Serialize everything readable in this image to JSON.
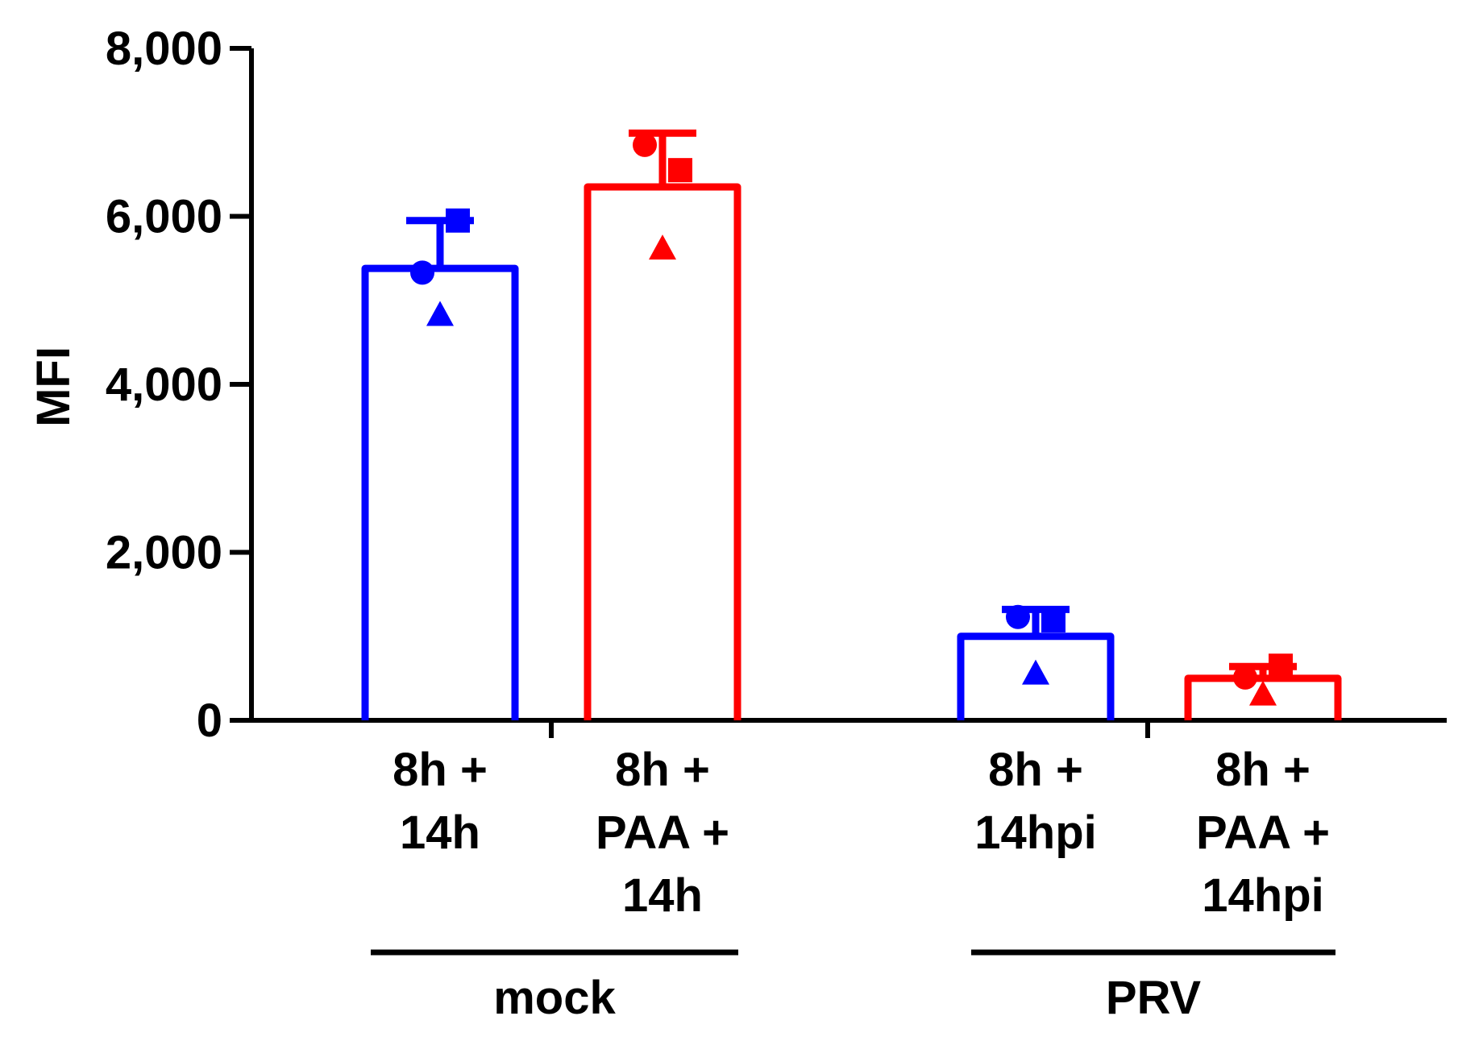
{
  "chart_data": {
    "type": "bar",
    "title": "",
    "xlabel": "",
    "ylabel": "MFI",
    "ylim": [
      0,
      8000
    ],
    "yticks": [
      0,
      2000,
      4000,
      6000,
      8000
    ],
    "ytick_labels": [
      "0",
      "2,000",
      "4,000",
      "6,000",
      "8,000"
    ],
    "grid": false,
    "legend": "none",
    "categories": [
      {
        "label_lines": [
          "8h +",
          "14h"
        ],
        "group": "mock",
        "color": "#0000ff",
        "mean": 5380,
        "sd_upper": 5950,
        "points": [
          {
            "marker": "circle",
            "value": 5330
          },
          {
            "marker": "square",
            "value": 5950
          },
          {
            "marker": "triangle",
            "value": 4830
          }
        ]
      },
      {
        "label_lines": [
          "8h +",
          "PAA +",
          "14h"
        ],
        "group": "mock",
        "color": "#ff0000",
        "mean": 6350,
        "sd_upper": 6990,
        "points": [
          {
            "marker": "circle",
            "value": 6850
          },
          {
            "marker": "square",
            "value": 6550
          },
          {
            "marker": "triangle",
            "value": 5620
          }
        ]
      },
      {
        "label_lines": [
          "8h +",
          "14hpi"
        ],
        "group": "PRV",
        "color": "#0000ff",
        "mean": 1000,
        "sd_upper": 1320,
        "points": [
          {
            "marker": "circle",
            "value": 1230
          },
          {
            "marker": "square",
            "value": 1190
          },
          {
            "marker": "triangle",
            "value": 560
          }
        ]
      },
      {
        "label_lines": [
          "8h +",
          "PAA +",
          "14hpi"
        ],
        "group": "PRV",
        "color": "#ff0000",
        "mean": 500,
        "sd_upper": 640,
        "points": [
          {
            "marker": "circle",
            "value": 510
          },
          {
            "marker": "square",
            "value": 650
          },
          {
            "marker": "triangle",
            "value": 310
          }
        ]
      }
    ],
    "groups": [
      {
        "name": "mock"
      },
      {
        "name": "PRV"
      }
    ]
  }
}
